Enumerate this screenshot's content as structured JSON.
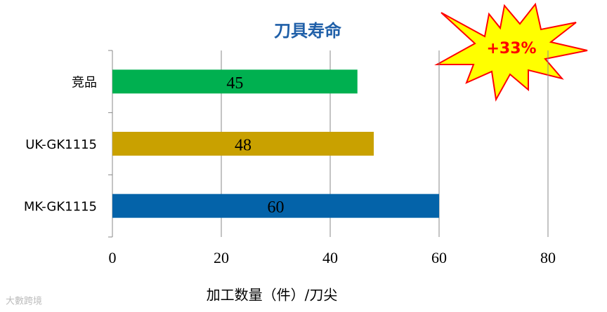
{
  "chart_data": {
    "type": "bar",
    "orientation": "horizontal",
    "title": "刀具寿命",
    "categories": [
      "竞品",
      "UK-GK1115",
      "MK-GK1115"
    ],
    "values": [
      45,
      48,
      60
    ],
    "colors": [
      "#00b050",
      "#c9a100",
      "#0463a9"
    ],
    "xlim": [
      0,
      80
    ],
    "xticks": [
      0,
      20,
      40,
      60,
      80
    ],
    "grid": true,
    "xlabel": "加工数量（件）/刀尖",
    "annotation": "+33%",
    "watermark": "大數跨境"
  }
}
